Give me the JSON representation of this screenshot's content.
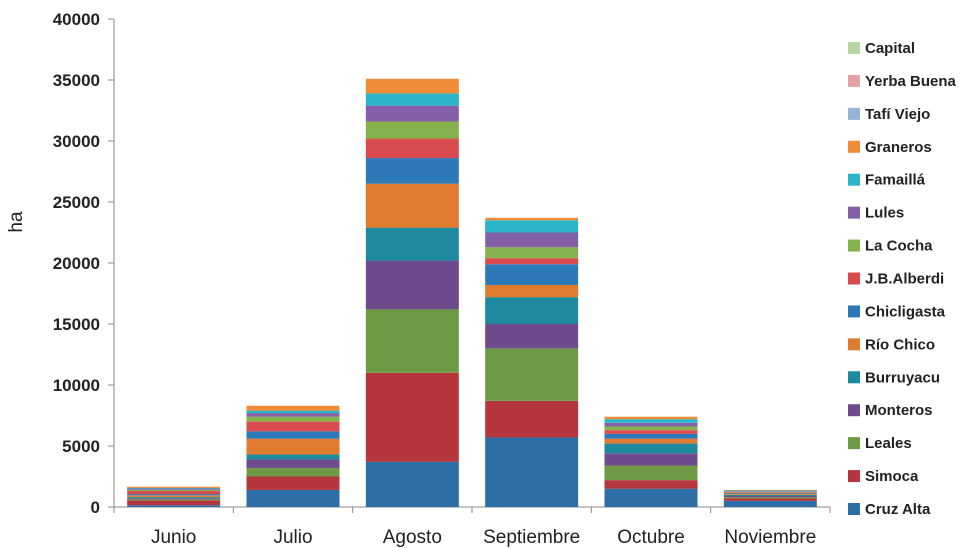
{
  "chart_data": {
    "type": "bar",
    "stacked": true,
    "ylabel": "ha",
    "xlabel": "",
    "ylim": [
      0,
      40000
    ],
    "yticks": [
      "0",
      "5000",
      "10000",
      "15000",
      "20000",
      "25000",
      "30000",
      "35000",
      "40000"
    ],
    "grid": false,
    "legend_position": "right",
    "categories": [
      "Junio",
      "Julio",
      "Agosto",
      "Septiembre",
      "Octubre",
      "Noviembre"
    ],
    "series": [
      {
        "name": "Cruz Alta",
        "color": "#2E6EA6",
        "values": [
          150,
          1400,
          3700,
          5700,
          1500,
          500
        ]
      },
      {
        "name": "Simoca",
        "color": "#B5373D",
        "values": [
          400,
          1100,
          7300,
          3000,
          700,
          200
        ]
      },
      {
        "name": "Leales",
        "color": "#6E9A45",
        "values": [
          80,
          700,
          5200,
          4300,
          1200,
          100
        ]
      },
      {
        "name": "Monteros",
        "color": "#6E4B8C",
        "values": [
          80,
          700,
          4000,
          2000,
          1000,
          100
        ]
      },
      {
        "name": "Burruyacu",
        "color": "#1D8A9E",
        "values": [
          100,
          400,
          2700,
          2200,
          800,
          100
        ]
      },
      {
        "name": "Río Chico",
        "color": "#E07B30",
        "values": [
          150,
          1300,
          3600,
          1000,
          400,
          100
        ]
      },
      {
        "name": "Chicligasta",
        "color": "#2D79B8",
        "values": [
          100,
          600,
          2100,
          1700,
          400,
          50
        ]
      },
      {
        "name": "J.B.Alberdi",
        "color": "#DA4B4F",
        "values": [
          250,
          800,
          1600,
          500,
          300,
          50
        ]
      },
      {
        "name": "La Cocha",
        "color": "#86B24E",
        "values": [
          100,
          400,
          1400,
          900,
          300,
          50
        ]
      },
      {
        "name": "Lules",
        "color": "#8460A8",
        "values": [
          100,
          300,
          1300,
          1200,
          300,
          50
        ]
      },
      {
        "name": "Famaillá",
        "color": "#2BB5C8",
        "values": [
          50,
          200,
          1000,
          1000,
          300,
          50
        ]
      },
      {
        "name": "Graneros",
        "color": "#F08C38",
        "values": [
          100,
          400,
          1200,
          200,
          200,
          50
        ]
      },
      {
        "name": "Tafí Viejo",
        "color": "#96B4D8",
        "values": [
          0,
          0,
          0,
          0,
          0,
          0
        ]
      },
      {
        "name": "Yerba Buena",
        "color": "#E3A3A3",
        "values": [
          0,
          0,
          0,
          0,
          0,
          0
        ]
      },
      {
        "name": "Capital",
        "color": "#B4D7A4",
        "values": [
          0,
          0,
          0,
          0,
          0,
          0
        ]
      }
    ]
  }
}
